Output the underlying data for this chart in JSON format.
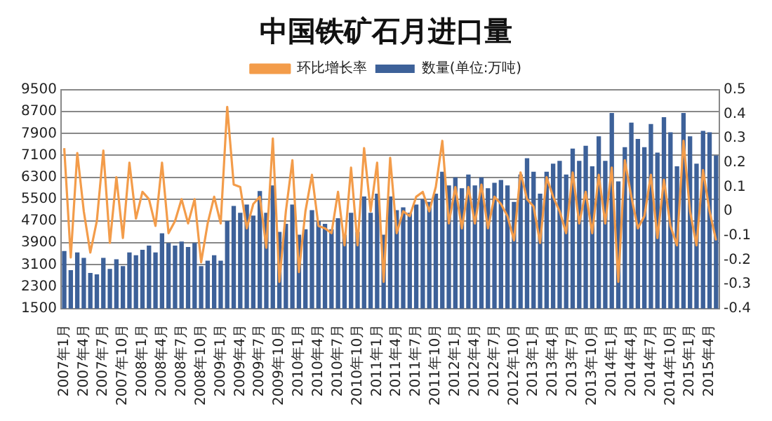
{
  "chart_data": {
    "type": "bar",
    "title": "中国铁矿石月进口量",
    "categories": [
      "2007年1月",
      null,
      null,
      "2007年4月",
      null,
      null,
      "2007年7月",
      null,
      null,
      "2007年10月",
      null,
      null,
      "2008年1月",
      null,
      null,
      "2008年4月",
      null,
      null,
      "2008年7月",
      null,
      null,
      "2008年10月",
      null,
      null,
      "2009年1月",
      null,
      null,
      "2009年4月",
      null,
      null,
      "2009年7月",
      null,
      null,
      "2009年10月",
      null,
      null,
      "2010年1月",
      null,
      null,
      "2010年4月",
      null,
      null,
      "2010年7月",
      null,
      null,
      "2010年10月",
      null,
      null,
      "2011年1月",
      null,
      null,
      "2011年4月",
      null,
      null,
      "2011年7月",
      null,
      null,
      "2011年10月",
      null,
      null,
      "2012年1月",
      null,
      null,
      "2012年4月",
      null,
      null,
      "2012年7月",
      null,
      null,
      "2012年10月",
      null,
      null,
      "2013年1月",
      null,
      null,
      "2013年4月",
      null,
      null,
      "2013年7月",
      null,
      null,
      "2013年10月",
      null,
      null,
      "2014年1月",
      null,
      null,
      "2014年4月",
      null,
      null,
      "2014年7月",
      null,
      null,
      "2014年10月",
      null,
      null,
      "2015年1月",
      null,
      null,
      "2015年4月",
      null
    ],
    "series": [
      {
        "name": "数量(单位:万吨)",
        "color": "#3d6199",
        "values": [
          3600,
          2900,
          3550,
          3350,
          2800,
          2750,
          3350,
          2950,
          3300,
          3050,
          3550,
          3450,
          3650,
          3800,
          3550,
          4250,
          3900,
          3800,
          3950,
          3750,
          3900,
          3050,
          3250,
          3450,
          3250,
          4700,
          5250,
          5000,
          5300,
          4900,
          5800,
          5000,
          6000,
          4300,
          4600,
          5300,
          4200,
          4400,
          5100,
          4700,
          4600,
          4400,
          4800,
          4200,
          5000,
          4300,
          5600,
          5000,
          5700,
          4200,
          5600,
          5100,
          5200,
          5000,
          5300,
          5500,
          5400,
          5700,
          6500,
          6000,
          6300,
          5900,
          6400,
          6000,
          6300,
          5900,
          6100,
          6200,
          6000,
          5400,
          6400,
          7000,
          6500,
          5700,
          6500,
          6800,
          6900,
          6400,
          7350,
          6900,
          7450,
          6700,
          7800,
          6900,
          8650,
          6150,
          7400,
          8300,
          7700,
          7400,
          8250,
          7200,
          8500,
          7950,
          6700,
          8650,
          7800,
          6800,
          8000,
          7950,
          7100
        ]
      },
      {
        "name": "环比增长率",
        "type": "line",
        "axis": "y2",
        "color": "#f39c4a",
        "values": [
          0.26,
          -0.19,
          0.24,
          0.0,
          -0.17,
          -0.04,
          0.25,
          -0.13,
          0.14,
          -0.11,
          0.2,
          -0.03,
          0.08,
          0.05,
          -0.06,
          0.2,
          -0.09,
          -0.04,
          0.05,
          -0.05,
          0.05,
          -0.21,
          -0.05,
          0.06,
          -0.05,
          0.43,
          0.11,
          0.1,
          -0.07,
          0.03,
          0.06,
          -0.15,
          0.3,
          -0.29,
          0.0,
          0.21,
          -0.25,
          0.0,
          0.15,
          -0.06,
          -0.07,
          -0.09,
          0.08,
          -0.14,
          0.18,
          -0.14,
          0.26,
          0.0,
          0.2,
          -0.29,
          0.22,
          -0.09,
          0.0,
          -0.02,
          0.06,
          0.08,
          0.0,
          0.1,
          0.29,
          -0.05,
          0.1,
          -0.07,
          0.1,
          -0.05,
          0.11,
          -0.07,
          0.06,
          0.03,
          -0.02,
          -0.12,
          0.16,
          0.05,
          0.02,
          -0.13,
          0.14,
          0.06,
          0.0,
          -0.09,
          0.16,
          -0.05,
          0.08,
          -0.09,
          0.15,
          -0.05,
          0.18,
          -0.29,
          0.21,
          0.06,
          -0.07,
          -0.02,
          0.15,
          -0.11,
          0.13,
          -0.06,
          -0.14,
          0.29,
          0.0,
          -0.14,
          0.17,
          0.0,
          -0.12
        ]
      }
    ],
    "ylim": [
      1500,
      9500
    ],
    "yticks": [
      1500,
      2300,
      3100,
      3900,
      4700,
      5500,
      6300,
      7100,
      7900,
      8700,
      9500
    ],
    "y2lim": [
      -0.4,
      0.5
    ],
    "y2ticks": [
      -0.4,
      -0.3,
      -0.2,
      -0.1,
      0,
      0.1,
      0.2,
      0.3,
      0.4,
      0.5
    ],
    "grid": "y",
    "legend": "top"
  }
}
